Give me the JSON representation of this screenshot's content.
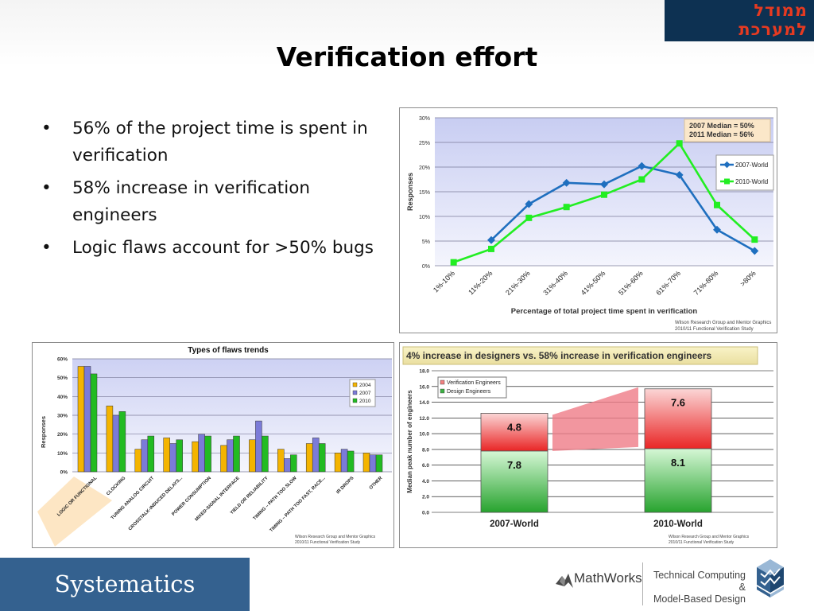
{
  "slide": {
    "title": "Verification effort",
    "bullets": [
      "56% of the project time is spent in verification",
      "58% increase in verification engineers",
      "Logic flaws account for >50% bugs"
    ]
  },
  "logo_top": {
    "line1": "ממודל",
    "line2": "למערכת"
  },
  "footer": {
    "brand": "Systematics",
    "mathworks": "MathWorks",
    "tagline_line1": "Technical Computing &",
    "tagline_line2": "Model-Based Design"
  },
  "colors": {
    "world_2007": "#1f6fbf",
    "world_2010": "#22ee22",
    "flaws_2004": "#f4b400",
    "flaws_2007": "#7b7bd8",
    "flaws_2010": "#22bb22",
    "verification_engineers": "#f08080",
    "design_engineers": "#3cb043",
    "footer_blue": "#34618f"
  },
  "chart_data": [
    {
      "type": "line",
      "categories": [
        "1%-10%",
        "11%-20%",
        "21%-30%",
        "31%-40%",
        "41%-50%",
        "51%-60%",
        "61%-70%",
        "71%-80%",
        ">80%"
      ],
      "series": [
        {
          "name": "2007-World",
          "values": [
            null,
            5.2,
            12.5,
            16.8,
            16.5,
            20.2,
            18.4,
            7.3,
            3.0
          ]
        },
        {
          "name": "2010-World",
          "values": [
            0.7,
            3.4,
            9.7,
            11.9,
            14.4,
            17.5,
            24.8,
            12.3,
            5.3
          ]
        }
      ],
      "ylabel": "Responses",
      "xlabel": "Percentage of total project time spent in verification",
      "ylim": [
        0,
        30
      ],
      "yticks": [
        "0%",
        "5%",
        "10%",
        "15%",
        "20%",
        "25%",
        "30%"
      ],
      "annotation": [
        "2007 Median = 50%",
        "2011 Median = 56%"
      ],
      "source": [
        "Wilson Research Group and Mentor Graphics",
        "2010/11 Functional Verification Study"
      ],
      "legend": "right",
      "grid": true
    },
    {
      "type": "bar",
      "title": "Types of flaws trends",
      "categories": [
        "LOGIC OR FUNCTIONAL",
        "CLOCKING",
        "TUNING ANALOG CIRCUIT",
        "CROSSTALK-INDUCED DELAYS...",
        "POWER CONSUMPTION",
        "MIXED-SIGNAL INTERFACE",
        "YIELD OR RELIABILITY",
        "TIMING – PATH TOO SLOW",
        "TIMING – PATH TOO FAST, RACE...",
        "IR DROPS",
        "OTHER"
      ],
      "series": [
        {
          "name": "2004",
          "values": [
            56,
            35,
            12,
            18,
            16,
            14,
            17,
            12,
            15,
            10,
            10
          ]
        },
        {
          "name": "2007",
          "values": [
            56,
            30,
            17,
            15,
            20,
            17,
            27,
            7,
            18,
            12,
            9
          ]
        },
        {
          "name": "2010",
          "values": [
            52,
            32,
            19,
            17,
            19,
            19,
            19,
            9,
            15,
            11,
            9
          ]
        }
      ],
      "ylabel": "Responses",
      "ylim": [
        0,
        60
      ],
      "yticks": [
        "0%",
        "10%",
        "20%",
        "30%",
        "40%",
        "50%",
        "60%"
      ],
      "source": [
        "Wilson Research Group and Mentor Graphics",
        "2010/11 Functional Verification Study"
      ],
      "legend": "right",
      "grid": true
    },
    {
      "type": "bar",
      "title": "4% increase in designers vs. 58% increase in verification engineers",
      "categories": [
        "2007-World",
        "2010-World"
      ],
      "series": [
        {
          "name": "Design Engineers",
          "values": [
            7.8,
            8.1
          ]
        },
        {
          "name": "Verification Engineers",
          "values": [
            4.8,
            7.6
          ]
        }
      ],
      "stacked": true,
      "ylabel": "Median peak number of engineers",
      "ylim": [
        0,
        18
      ],
      "yticks": [
        "0.0",
        "2.0",
        "4.0",
        "6.0",
        "8.0",
        "10.0",
        "12.0",
        "14.0",
        "16.0",
        "18.0"
      ],
      "source": [
        "Wilson Research Group and Mentor Graphics",
        "2010/11 Functional Verification Study"
      ],
      "legend": "top-left",
      "grid": true
    }
  ]
}
